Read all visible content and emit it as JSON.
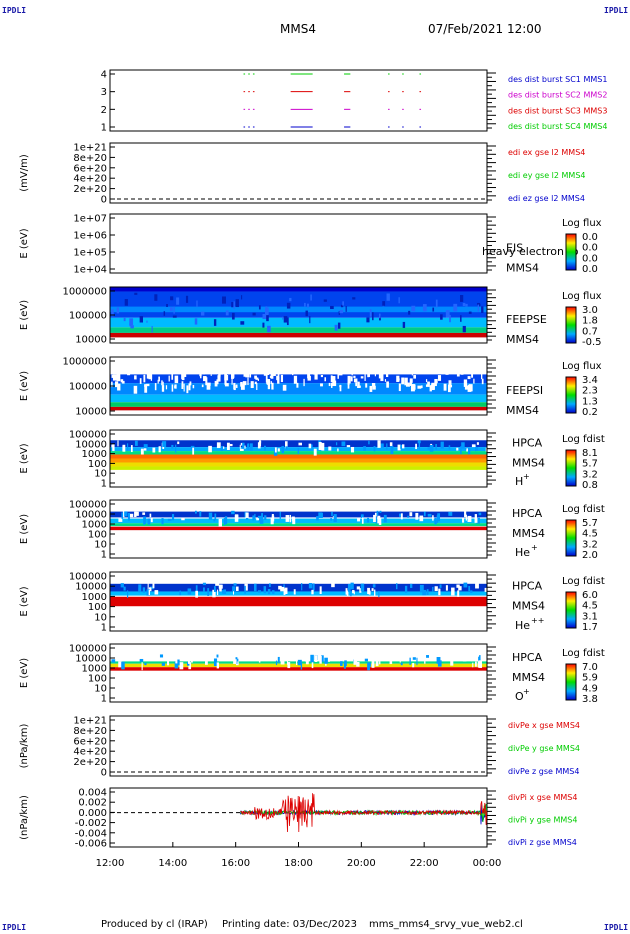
{
  "corner_labels": {
    "tl": "IPDLI",
    "tr": "IPDLI",
    "bl": "IPDLI",
    "br": "IPDLI"
  },
  "header": {
    "spacecraft": "MMS4",
    "datetime": "07/Feb/2021 12:00"
  },
  "footer": {
    "produced_by": "Produced by cl (IRAP)",
    "printing_date": "Printing date: 03/Dec/2023",
    "filename": "mms_mms4_srvy_vue_web2.cl"
  },
  "colors": {
    "red": "#dd0000",
    "magenta": "#cc00cc",
    "blue": "#0000cc",
    "green": "#00cc00"
  },
  "chart_data": {
    "type": "multi-panel time series",
    "xaxis": {
      "ticks": [
        "12:00",
        "14:00",
        "16:00",
        "18:00",
        "20:00",
        "22:00",
        "00:00"
      ]
    },
    "panels": [
      {
        "id": "p1",
        "type": "line",
        "ylabel": "",
        "yticks": [
          "4",
          "3",
          "2",
          "1"
        ],
        "legend": [
          {
            "text": "des dist burst SC1 MMS1",
            "color": "#0000cc"
          },
          {
            "text": "des dist burst SC2 MMS2",
            "color": "#cc00cc"
          },
          {
            "text": "des dist burst SC3 MMS3",
            "color": "#dd0000"
          },
          {
            "text": "des dist burst SC4 MMS4",
            "color": "#00cc00"
          }
        ],
        "segments_hours": [
          {
            "level": 4,
            "color": "#00cc00",
            "segs": [
              [
                4.25,
                4.3
              ],
              [
                4.4,
                4.45
              ],
              [
                4.55,
                4.6
              ],
              [
                5.75,
                6.45
              ],
              [
                7.45,
                7.65
              ],
              [
                8.85,
                8.9
              ],
              [
                9.3,
                9.35
              ],
              [
                9.85,
                9.9
              ]
            ]
          },
          {
            "level": 3,
            "color": "#dd0000",
            "segs": [
              [
                4.25,
                4.3
              ],
              [
                4.4,
                4.45
              ],
              [
                4.55,
                4.6
              ],
              [
                5.75,
                6.45
              ],
              [
                7.45,
                7.65
              ],
              [
                8.85,
                8.9
              ],
              [
                9.3,
                9.35
              ],
              [
                9.85,
                9.9
              ]
            ]
          },
          {
            "level": 2,
            "color": "#cc00cc",
            "segs": [
              [
                4.25,
                4.3
              ],
              [
                4.4,
                4.45
              ],
              [
                4.55,
                4.6
              ],
              [
                5.75,
                6.45
              ],
              [
                7.45,
                7.65
              ],
              [
                8.85,
                8.9
              ],
              [
                9.3,
                9.35
              ],
              [
                9.85,
                9.9
              ]
            ]
          },
          {
            "level": 1,
            "color": "#0000cc",
            "segs": [
              [
                4.25,
                4.3
              ],
              [
                4.4,
                4.45
              ],
              [
                4.55,
                4.6
              ],
              [
                5.75,
                6.45
              ],
              [
                7.45,
                7.65
              ],
              [
                8.85,
                8.9
              ],
              [
                9.3,
                9.35
              ],
              [
                9.85,
                9.9
              ]
            ]
          }
        ]
      },
      {
        "id": "p2",
        "type": "line",
        "ylabel": "(mV/m)",
        "yticks": [
          "1e+21",
          "8e+20",
          "6e+20",
          "4e+20",
          "2e+20",
          "0"
        ],
        "legend": [
          {
            "text": "edi ex gse l2 MMS4",
            "color": "#dd0000"
          },
          {
            "text": "edi ey gse l2 MMS4",
            "color": "#00cc00"
          },
          {
            "text": "edi ez gse l2 MMS4",
            "color": "#0000cc"
          }
        ]
      },
      {
        "id": "p3",
        "type": "spectrogram",
        "ylabel": "E (eV)",
        "yticks": [
          "1e+07",
          "1e+06",
          "1e+05",
          "1e+04"
        ],
        "instrument": [
          "EIS",
          "MMS4"
        ],
        "overlay_text": "heavy electron to",
        "colorbar": {
          "title": "Log flux",
          "ticks": [
            "0.0",
            "0.0",
            "0.0",
            "0.0"
          ]
        }
      },
      {
        "id": "p4",
        "type": "spectrogram",
        "ylabel": "E (eV)",
        "yticks": [
          "1000000",
          "100000",
          "10000"
        ],
        "instrument": [
          "FEEPSE",
          "MMS4"
        ],
        "colorbar": {
          "title": "Log flux",
          "ticks": [
            "3.0",
            "1.8",
            "0.7",
            "-0.5"
          ]
        }
      },
      {
        "id": "p5",
        "type": "spectrogram",
        "ylabel": "E (eV)",
        "yticks": [
          "1000000",
          "100000",
          "10000"
        ],
        "instrument": [
          "FEEPSI",
          "MMS4"
        ],
        "colorbar": {
          "title": "Log flux",
          "ticks": [
            "3.4",
            "2.3",
            "1.3",
            "0.2"
          ]
        }
      },
      {
        "id": "p6",
        "type": "spectrogram",
        "ylabel": "E (eV)",
        "yticks": [
          "100000",
          "10000",
          "1000",
          "100",
          "10",
          "1"
        ],
        "instrument": [
          "HPCA",
          "MMS4"
        ],
        "species": "H",
        "charge": "+",
        "colorbar": {
          "title": "Log fdist",
          "ticks": [
            "8.1",
            "5.7",
            "3.2",
            "0.8"
          ]
        }
      },
      {
        "id": "p7",
        "type": "spectrogram",
        "ylabel": "E (eV)",
        "yticks": [
          "100000",
          "10000",
          "1000",
          "100",
          "10",
          "1"
        ],
        "instrument": [
          "HPCA",
          "MMS4"
        ],
        "species": "He",
        "charge": "+",
        "colorbar": {
          "title": "Log fdist",
          "ticks": [
            "5.7",
            "4.5",
            "3.2",
            "2.0"
          ]
        }
      },
      {
        "id": "p8",
        "type": "spectrogram",
        "ylabel": "E (eV)",
        "yticks": [
          "100000",
          "10000",
          "1000",
          "100",
          "10",
          "1"
        ],
        "instrument": [
          "HPCA",
          "MMS4"
        ],
        "species": "He",
        "charge": "++",
        "colorbar": {
          "title": "Log fdist",
          "ticks": [
            "6.0",
            "4.5",
            "3.1",
            "1.7"
          ]
        }
      },
      {
        "id": "p9",
        "type": "spectrogram",
        "ylabel": "E (eV)",
        "yticks": [
          "100000",
          "10000",
          "1000",
          "100",
          "10",
          "1"
        ],
        "instrument": [
          "HPCA",
          "MMS4"
        ],
        "species": "O",
        "charge": "+",
        "colorbar": {
          "title": "Log fdist",
          "ticks": [
            "7.0",
            "5.9",
            "4.9",
            "3.8"
          ]
        }
      },
      {
        "id": "p10",
        "type": "line",
        "ylabel": "(nPa/km)",
        "yticks": [
          "1e+21",
          "8e+20",
          "6e+20",
          "4e+20",
          "2e+20",
          "0"
        ],
        "legend": [
          {
            "text": "divPe x gse MMS4",
            "color": "#dd0000"
          },
          {
            "text": "divPe y gse MMS4",
            "color": "#00cc00"
          },
          {
            "text": "divPe z gse MMS4",
            "color": "#0000cc"
          }
        ]
      },
      {
        "id": "p11",
        "type": "line",
        "ylabel": "(nPa/km)",
        "yticks": [
          "0.004",
          "0.002",
          "0.000",
          "-0.002",
          "-0.004",
          "-0.006"
        ],
        "ylim": [
          -0.007,
          0.005
        ],
        "legend": [
          {
            "text": "divPi x gse MMS4",
            "color": "#dd0000"
          },
          {
            "text": "divPi y gse MMS4",
            "color": "#00cc00"
          },
          {
            "text": "divPi z gse MMS4",
            "color": "#0000cc"
          }
        ],
        "data_start_hour": 4.15
      }
    ]
  }
}
